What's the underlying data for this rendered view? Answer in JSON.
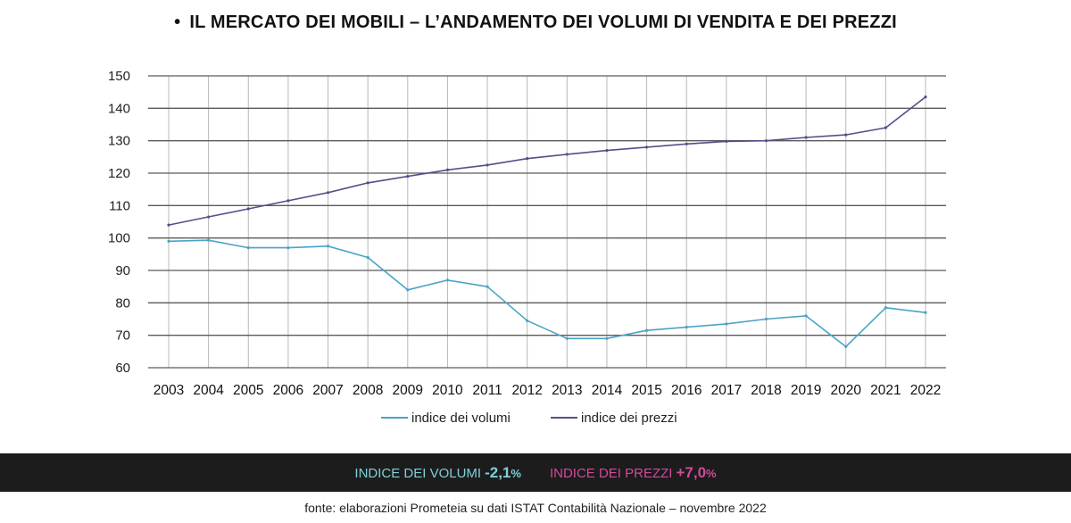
{
  "title": "IL MERCATO DEI MOBILI – L’ANDAMENTO DEI VOLUMI DI VENDITA E DEI PREZZI",
  "title_bullet": "•",
  "colors": {
    "volumi": "#4aa3c8",
    "prezzi": "#5b4b8a",
    "grid_h": "#5a5a5a",
    "grid_v": "#b8b8b8",
    "summary_volumi": "#7fd0d8",
    "summary_prezzi": "#d04a9a"
  },
  "chart_data": {
    "type": "line",
    "categories": [
      "2003",
      "2004",
      "2005",
      "2006",
      "2007",
      "2008",
      "2009",
      "2010",
      "2011",
      "2012",
      "2013",
      "2014",
      "2015",
      "2016",
      "2017",
      "2018",
      "2019",
      "2020",
      "2021",
      "2022"
    ],
    "series": [
      {
        "name": "indice dei volumi",
        "values": [
          99,
          99.3,
          97,
          97,
          97.5,
          94,
          84,
          87,
          85,
          74.5,
          69,
          69,
          71.5,
          72.5,
          73.5,
          75,
          76,
          66.5,
          78.5,
          77
        ]
      },
      {
        "name": "indice dei prezzi",
        "values": [
          104,
          106.5,
          109,
          111.5,
          114,
          117,
          119,
          121,
          122.5,
          124.5,
          125.8,
          127,
          128,
          129,
          129.8,
          130,
          131,
          131.8,
          134,
          143.5
        ]
      }
    ],
    "ylim": [
      60,
      150
    ],
    "yticks": [
      "150",
      "140",
      "130",
      "120",
      "110",
      "100",
      "90",
      "80",
      "70",
      "60"
    ],
    "grid": true,
    "legend_position": "bottom"
  },
  "summary": {
    "volumi_label": "INDICE DEI VOLUMI",
    "volumi_value": "-2,1",
    "volumi_pct": "%",
    "prezzi_label": "INDICE DEI PREZZI",
    "prezzi_value": "+7,0",
    "prezzi_pct": "%"
  },
  "source": "fonte: elaborazioni Prometeia su dati ISTAT Contabilità Nazionale – novembre 2022"
}
